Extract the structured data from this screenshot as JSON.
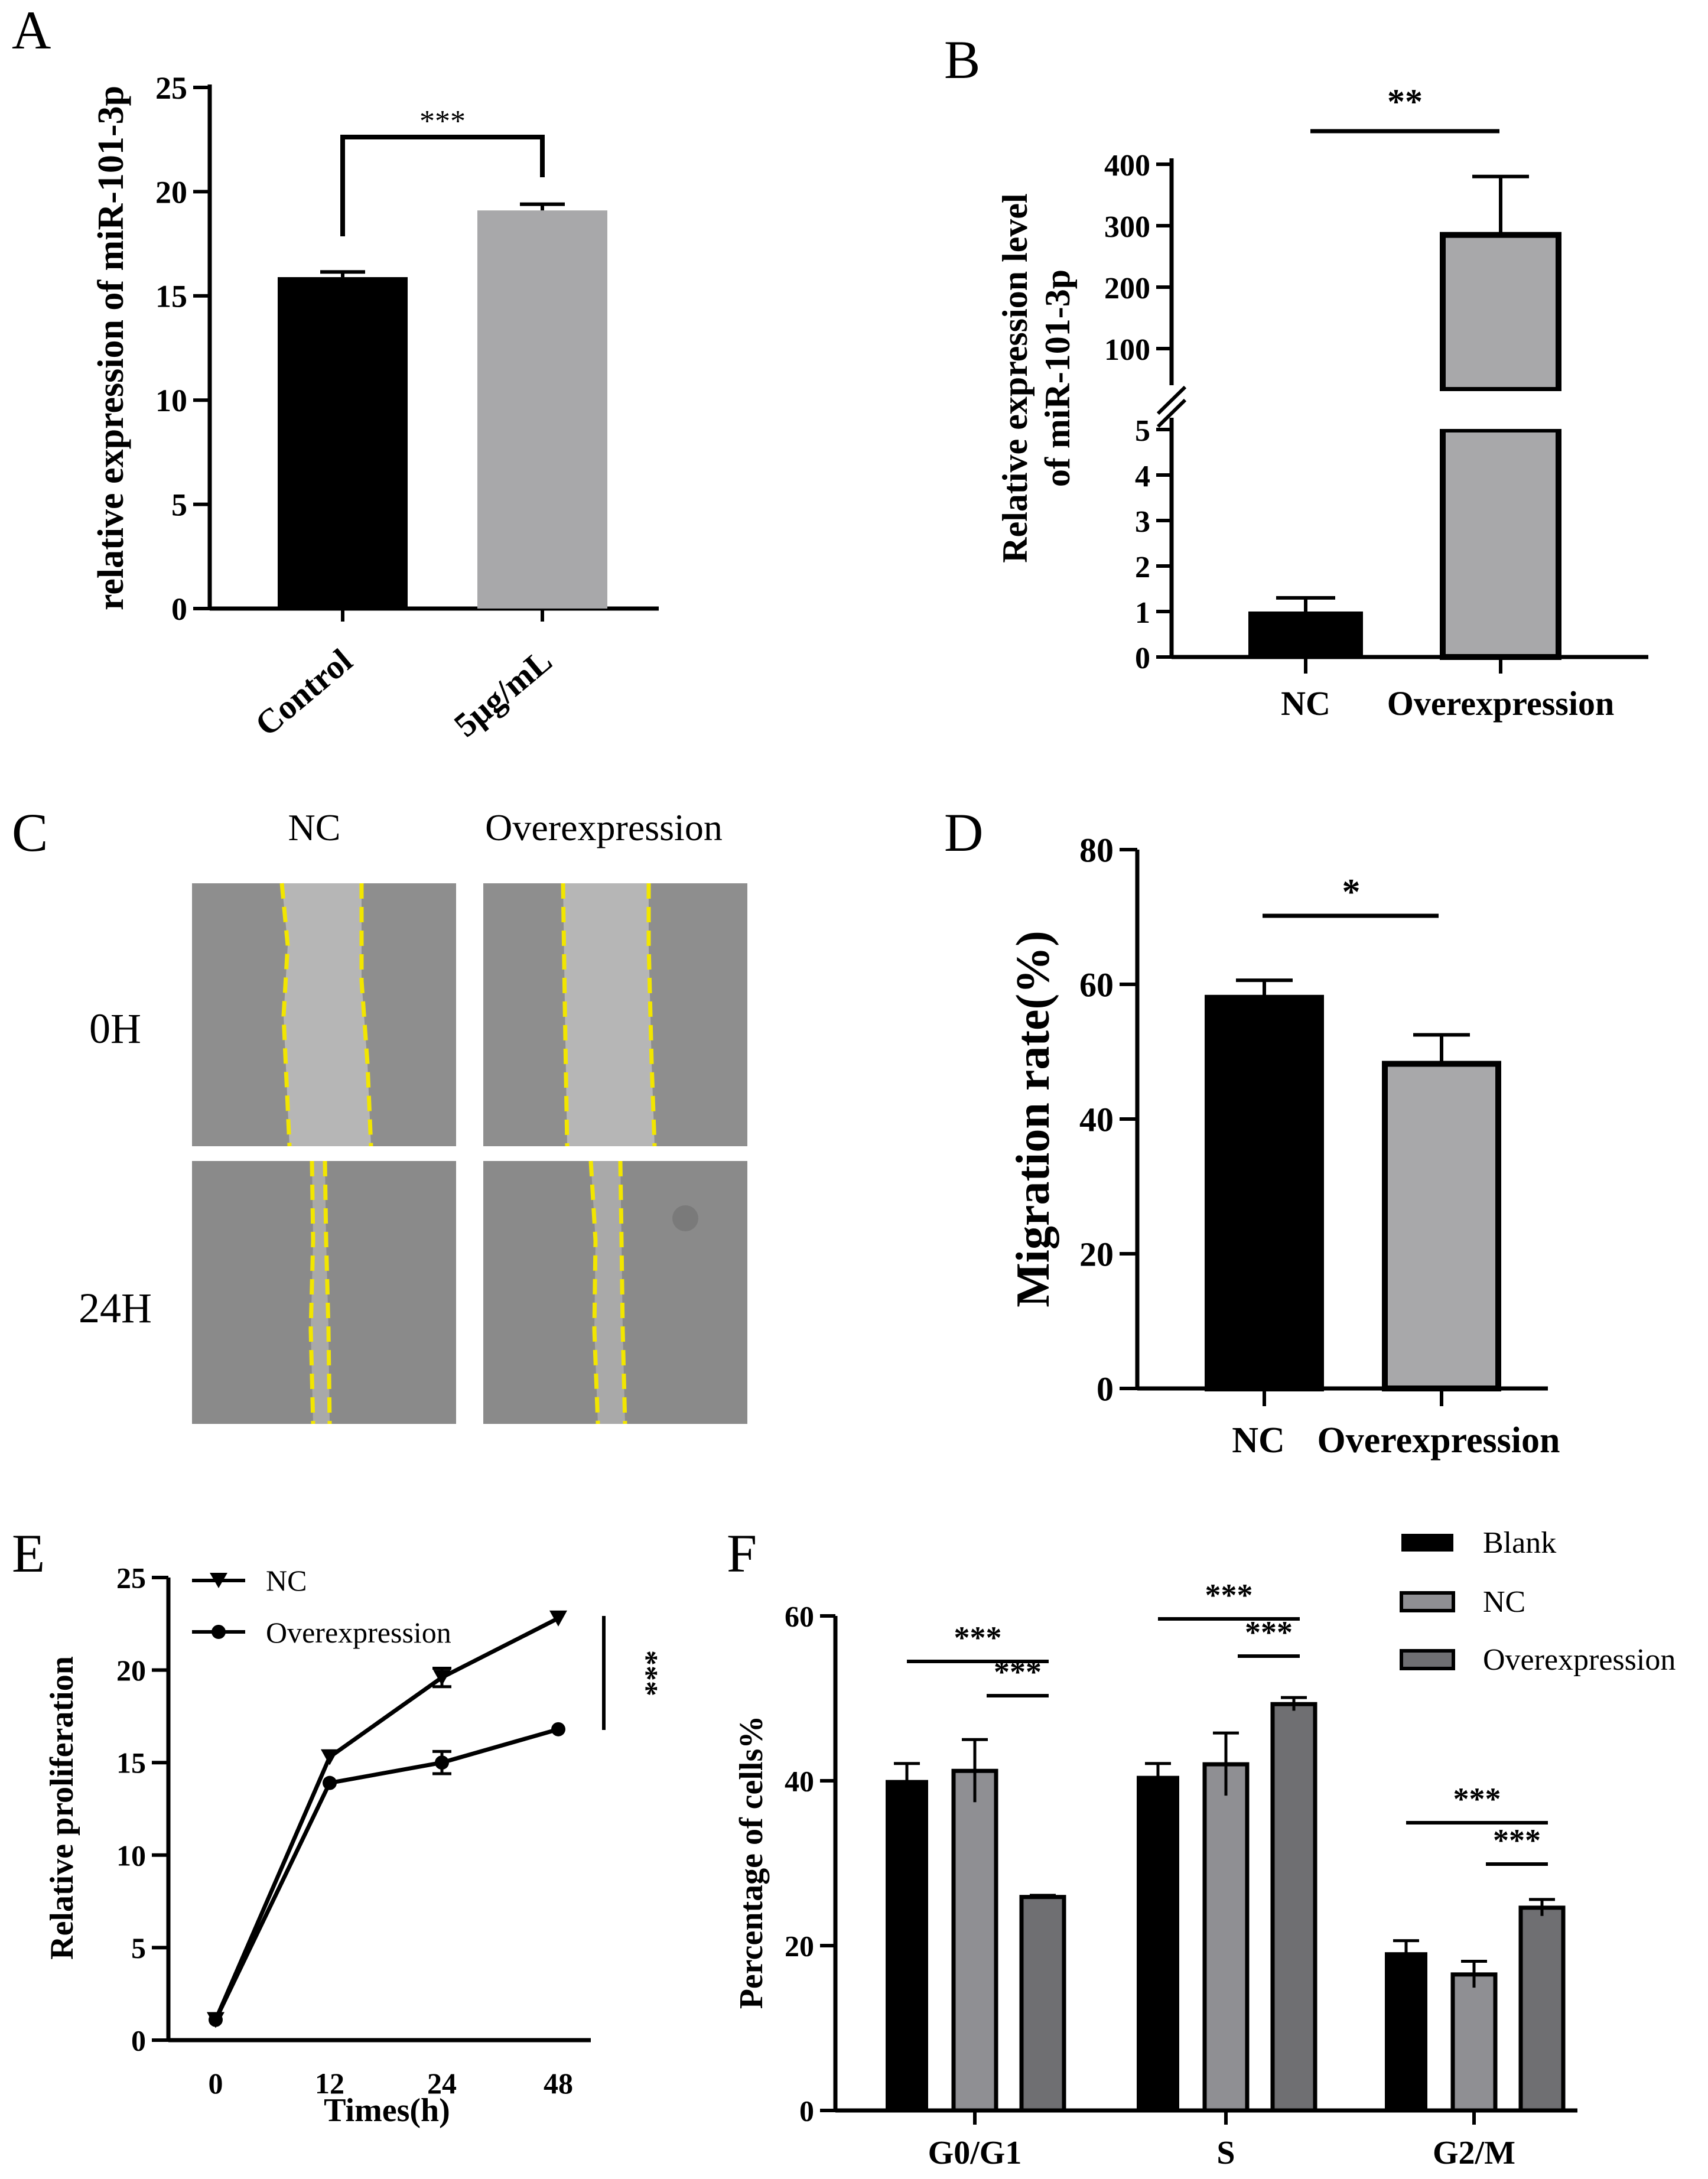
{
  "panels": {
    "A": "A",
    "B": "B",
    "C": "C",
    "D": "D",
    "E": "E",
    "F": "F"
  },
  "colors": {
    "black": "#000000",
    "light_gray": "#a8a8aa",
    "mid_gray": "#8f8f93",
    "dark_gray": "#6f6f72",
    "scratch_line": "#f2e600",
    "cell_bg": "#8e8e8e",
    "wound_bg": "#b6b6b6"
  },
  "scratch_panel": {
    "columns": [
      "NC",
      "Overexpression"
    ],
    "rows": [
      "0H",
      "24H"
    ]
  },
  "chart_data": [
    {
      "id": "A",
      "type": "bar",
      "title": "",
      "xlabel": "",
      "ylabel": "relative expression of miR-101-3p",
      "categories": [
        "Control",
        "5μg/mL"
      ],
      "values": [
        15.9,
        19.1
      ],
      "errors": [
        0.25,
        0.3
      ],
      "ylim": [
        0,
        25
      ],
      "yticks": [
        "0",
        "5",
        "10",
        "15",
        "20",
        "25"
      ],
      "significance": [
        {
          "from": "Control",
          "to": "5μg/mL",
          "label": "***"
        }
      ]
    },
    {
      "id": "B",
      "type": "bar",
      "title": "",
      "xlabel": "",
      "ylabel": "Relative expression level of miR-101-3p",
      "ylabel_lines": [
        "Relative expression level",
        "of miR-101-3p"
      ],
      "categories": [
        "NC",
        "Overexpression"
      ],
      "values": [
        1.0,
        285
      ],
      "errors": [
        0.3,
        95
      ],
      "axis_break": {
        "lower_range": [
          0,
          5
        ],
        "upper_range": [
          100,
          400
        ]
      },
      "yticks_lower": [
        "0",
        "1",
        "2",
        "3",
        "4",
        "5"
      ],
      "yticks_upper": [
        "100",
        "200",
        "300",
        "400"
      ],
      "significance": [
        {
          "from": "NC",
          "to": "Overexpression",
          "label": "**"
        }
      ]
    },
    {
      "id": "D",
      "type": "bar",
      "title": "",
      "xlabel": "",
      "ylabel": "Migration rate(%)",
      "categories": [
        "NC",
        "Overexpression"
      ],
      "values": [
        58,
        48.2
      ],
      "errors": [
        2.6,
        4.3
      ],
      "ylim": [
        0,
        80
      ],
      "yticks": [
        "0",
        "20",
        "40",
        "60",
        "80"
      ],
      "significance": [
        {
          "from": "NC",
          "to": "Overexpression",
          "label": "*"
        }
      ]
    },
    {
      "id": "E",
      "type": "line",
      "title": "",
      "xlabel": "Times(h)",
      "ylabel": "Relative proliferation",
      "x": [
        0,
        12,
        24,
        48
      ],
      "xticks": [
        "0",
        "12",
        "24",
        "48"
      ],
      "ylim": [
        0,
        25
      ],
      "yticks": [
        "0",
        "5",
        "10",
        "15",
        "20",
        "25"
      ],
      "series": [
        {
          "name": "NC",
          "marker": "triangle-down",
          "values": [
            1.1,
            15.3,
            19.6,
            22.8
          ],
          "errors": [
            0.1,
            0.2,
            0.5,
            0.2
          ]
        },
        {
          "name": "Overexpression",
          "marker": "circle",
          "values": [
            1.1,
            13.9,
            15.0,
            16.8
          ],
          "errors": [
            0.1,
            0.2,
            0.6,
            0.2
          ]
        }
      ],
      "legend": "top-left",
      "significance_label": "***"
    },
    {
      "id": "F",
      "type": "bar",
      "title": "",
      "xlabel": "",
      "ylabel": "Percentage of cells%",
      "categories": [
        "G0/G1",
        "S",
        "G2/M"
      ],
      "series": [
        {
          "name": "Blank",
          "values": [
            40.1,
            40.6,
            19.2
          ],
          "errors": [
            2.0,
            1.5,
            1.4
          ]
        },
        {
          "name": "NC",
          "values": [
            41.2,
            42.0,
            16.5
          ],
          "errors": [
            3.8,
            3.8,
            1.6
          ]
        },
        {
          "name": "Overexpression",
          "values": [
            25.9,
            49.3,
            24.6
          ],
          "errors": [
            0.2,
            0.8,
            1.0
          ]
        }
      ],
      "ylim": [
        0,
        60
      ],
      "yticks": [
        "0",
        "20",
        "40",
        "60"
      ],
      "legend": "top-right",
      "significance": [
        {
          "group": "G0/G1",
          "pair": [
            "Blank",
            "Overexpression"
          ],
          "label": "***"
        },
        {
          "group": "G0/G1",
          "pair": [
            "NC",
            "Overexpression"
          ],
          "label": "***"
        },
        {
          "group": "S",
          "pair": [
            "Blank",
            "Overexpression"
          ],
          "label": "***"
        },
        {
          "group": "S",
          "pair": [
            "NC",
            "Overexpression"
          ],
          "label": "***"
        },
        {
          "group": "G2/M",
          "pair": [
            "Blank",
            "Overexpression"
          ],
          "label": "***"
        },
        {
          "group": "G2/M",
          "pair": [
            "NC",
            "Overexpression"
          ],
          "label": "***"
        }
      ]
    }
  ]
}
